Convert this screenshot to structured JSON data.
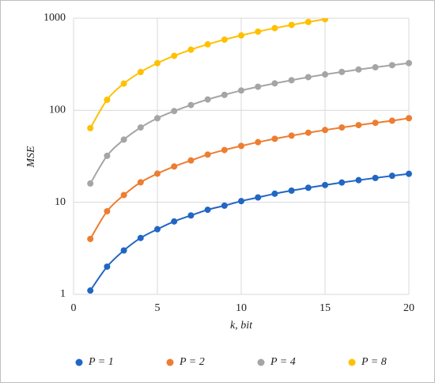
{
  "chart_data": {
    "type": "line",
    "x_label": "k, bit",
    "y_label": "MSE",
    "x": [
      1,
      2,
      3,
      4,
      5,
      6,
      7,
      8,
      9,
      10,
      11,
      12,
      13,
      14,
      15,
      16,
      17,
      18,
      19,
      20
    ],
    "series": [
      {
        "name": "P = 1",
        "color": "#2166c4",
        "values": [
          1.1,
          2,
          3,
          4.1,
          5.1,
          6.2,
          7.2,
          8.3,
          9.2,
          10.3,
          11.3,
          12.4,
          13.4,
          14.4,
          15.4,
          16.4,
          17.4,
          18.4,
          19.4,
          20.4
        ]
      },
      {
        "name": "P = 2",
        "color": "#ed7d31",
        "values": [
          4,
          8,
          12,
          16.5,
          20.5,
          24.5,
          28.5,
          33,
          37,
          41,
          45,
          49,
          53,
          57,
          61,
          65,
          69,
          73,
          77,
          82
        ]
      },
      {
        "name": "P = 4",
        "color": "#a5a5a5",
        "values": [
          16,
          32,
          48,
          65,
          82,
          98,
          114,
          131,
          147,
          164,
          180,
          196,
          212,
          229,
          245,
          261,
          277,
          293,
          309,
          325
        ]
      },
      {
        "name": "P = 8",
        "color": "#ffc000",
        "values": [
          64,
          130,
          195,
          260,
          325,
          390,
          455,
          520,
          585,
          650,
          715,
          780,
          845,
          910,
          975,
          null,
          null,
          null,
          null,
          null
        ]
      }
    ],
    "xlim": [
      0,
      20
    ],
    "xticks": [
      0,
      5,
      10,
      15,
      20
    ],
    "ylim": [
      1,
      1000
    ],
    "yticks": [
      1,
      10,
      100,
      1000
    ],
    "log_y": true,
    "grid": true,
    "legend": "bottom"
  }
}
